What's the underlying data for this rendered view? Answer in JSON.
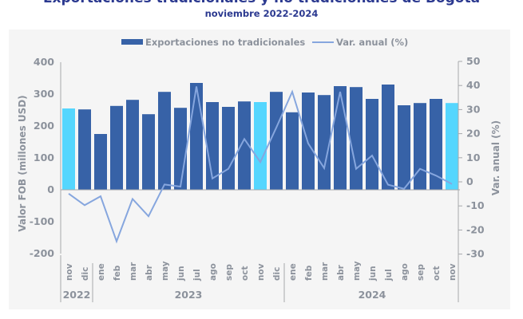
{
  "chart_data": {
    "type": "bar+line",
    "title": "Exportaciones tradicionales y no tradicionales de Bogotá",
    "subtitle": "noviembre 2022-2024",
    "categories": [
      "nov",
      "dic",
      "ene",
      "feb",
      "mar",
      "abr",
      "may",
      "jun",
      "jul",
      "ago",
      "sep",
      "oct",
      "nov",
      "dic",
      "ene",
      "feb",
      "mar",
      "abr",
      "may",
      "jun",
      "jul",
      "ago",
      "sep",
      "oct",
      "nov"
    ],
    "years": [
      {
        "label": "2022",
        "start": 0,
        "end": 1
      },
      {
        "label": "2023",
        "start": 2,
        "end": 13
      },
      {
        "label": "2024",
        "start": 14,
        "end": 24
      }
    ],
    "highlight_indices": [
      0,
      12,
      24
    ],
    "series": [
      {
        "name": "Exportaciones no tradicionales",
        "type": "bar",
        "axis": "left",
        "color": "#3762A7",
        "highlight_color": "#55D6FE",
        "values": [
          255,
          252,
          175,
          263,
          282,
          237,
          307,
          257,
          335,
          275,
          260,
          277,
          275,
          307,
          243,
          305,
          297,
          325,
          322,
          285,
          330,
          265,
          272,
          285,
          272
        ]
      },
      {
        "name": "Var. anual (%)",
        "type": "line",
        "axis": "right",
        "color": "#86A6DE",
        "values": [
          -4.9,
          -9.7,
          -6.0,
          -24.7,
          -7.1,
          -14.3,
          -1.1,
          -2.0,
          39.6,
          1.4,
          5.4,
          17.8,
          8.2,
          22.5,
          37.4,
          15.9,
          5.7,
          37.4,
          5.4,
          10.9,
          -1.2,
          -2.9,
          5.4,
          2.6,
          -0.9
        ]
      }
    ],
    "left_axis": {
      "label": "Valor FOB (millones USD)",
      "ylim": [
        -200,
        400
      ],
      "ticks": [
        400,
        300,
        200,
        100,
        0,
        -100,
        -200
      ]
    },
    "right_axis": {
      "label": "Var. anual (%)",
      "ylim": [
        -30,
        50
      ],
      "ticks": [
        50,
        40,
        30,
        20,
        10,
        0,
        -10,
        -20,
        -30
      ]
    },
    "legend": {
      "placement": "top-center",
      "items": [
        "Exportaciones no tradicionales",
        "Var. anual (%)"
      ]
    },
    "grid": false
  }
}
